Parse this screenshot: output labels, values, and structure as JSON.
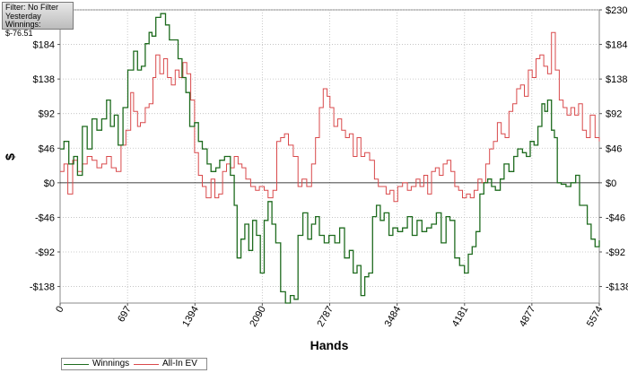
{
  "info_box": {
    "filter": "Filter: No Filter",
    "period": "Yesterday",
    "winnings": "Winnings: $-76.51"
  },
  "legend": {
    "items": [
      {
        "label": "Winnings",
        "color": "#1e6b1e"
      },
      {
        "label": "All-In EV",
        "color": "#d9494b"
      }
    ]
  },
  "chart_data": {
    "type": "line",
    "xlabel": "Hands",
    "ylabel": "$",
    "xlim": [
      0,
      5574
    ],
    "ylim": [
      -160,
      230
    ],
    "grid": true,
    "legend_position": "bottom-left",
    "x_ticks": [
      0,
      697,
      1394,
      2090,
      2787,
      3484,
      4181,
      4877,
      5574
    ],
    "x_tick_labels": [
      "0",
      "697",
      "1394",
      "2090",
      "2787",
      "3484",
      "4181",
      "4877",
      "5574"
    ],
    "y_ticks": [
      230,
      184,
      138,
      92,
      46,
      0,
      -46,
      -92,
      -138
    ],
    "y_tick_labels": [
      "$230",
      "$184",
      "$138",
      "$92",
      "$46",
      "$0",
      "-$46",
      "-$92",
      "-$138"
    ],
    "series": [
      {
        "name": "Winnings",
        "color": "#1e6b1e",
        "points": [
          [
            0,
            45
          ],
          [
            40,
            55
          ],
          [
            90,
            25
          ],
          [
            140,
            35
          ],
          [
            180,
            10
          ],
          [
            230,
            75
          ],
          [
            280,
            45
          ],
          [
            330,
            85
          ],
          [
            380,
            70
          ],
          [
            430,
            85
          ],
          [
            480,
            110
          ],
          [
            520,
            75
          ],
          [
            560,
            90
          ],
          [
            600,
            50
          ],
          [
            650,
            100
          ],
          [
            700,
            150
          ],
          [
            760,
            175
          ],
          [
            800,
            150
          ],
          [
            840,
            155
          ],
          [
            880,
            185
          ],
          [
            920,
            200
          ],
          [
            950,
            195
          ],
          [
            990,
            220
          ],
          [
            1040,
            225
          ],
          [
            1090,
            210
          ],
          [
            1130,
            190
          ],
          [
            1170,
            190
          ],
          [
            1220,
            165
          ],
          [
            1260,
            140
          ],
          [
            1300,
            120
          ],
          [
            1340,
            75
          ],
          [
            1390,
            80
          ],
          [
            1430,
            55
          ],
          [
            1470,
            45
          ],
          [
            1520,
            25
          ],
          [
            1560,
            15
          ],
          [
            1610,
            20
          ],
          [
            1650,
            30
          ],
          [
            1700,
            35
          ],
          [
            1760,
            10
          ],
          [
            1800,
            -30
          ],
          [
            1830,
            -100
          ],
          [
            1870,
            -75
          ],
          [
            1910,
            -55
          ],
          [
            1950,
            -90
          ],
          [
            1990,
            -50
          ],
          [
            2030,
            -70
          ],
          [
            2070,
            -120
          ],
          [
            2110,
            -50
          ],
          [
            2150,
            -25
          ],
          [
            2190,
            -55
          ],
          [
            2230,
            -80
          ],
          [
            2280,
            -145
          ],
          [
            2330,
            -160
          ],
          [
            2380,
            -150
          ],
          [
            2420,
            -155
          ],
          [
            2460,
            -70
          ],
          [
            2510,
            -40
          ],
          [
            2560,
            -75
          ],
          [
            2600,
            -55
          ],
          [
            2640,
            -45
          ],
          [
            2680,
            -70
          ],
          [
            2730,
            -80
          ],
          [
            2780,
            -70
          ],
          [
            2840,
            -80
          ],
          [
            2890,
            -60
          ],
          [
            2940,
            -100
          ],
          [
            2990,
            -90
          ],
          [
            3030,
            -120
          ],
          [
            3070,
            -110
          ],
          [
            3110,
            -150
          ],
          [
            3150,
            -125
          ],
          [
            3190,
            -120
          ],
          [
            3230,
            -45
          ],
          [
            3270,
            -30
          ],
          [
            3310,
            -50
          ],
          [
            3350,
            -40
          ],
          [
            3400,
            -70
          ],
          [
            3440,
            -60
          ],
          [
            3490,
            -65
          ],
          [
            3540,
            -60
          ],
          [
            3590,
            -45
          ],
          [
            3640,
            -70
          ],
          [
            3690,
            -50
          ],
          [
            3740,
            -65
          ],
          [
            3790,
            -60
          ],
          [
            3840,
            -55
          ],
          [
            3890,
            -40
          ],
          [
            3940,
            -80
          ],
          [
            3990,
            -45
          ],
          [
            4030,
            -50
          ],
          [
            4080,
            -100
          ],
          [
            4130,
            -110
          ],
          [
            4180,
            -120
          ],
          [
            4220,
            -95
          ],
          [
            4260,
            -85
          ],
          [
            4300,
            -65
          ],
          [
            4340,
            -15
          ],
          [
            4380,
            0
          ],
          [
            4420,
            5
          ],
          [
            4460,
            -5
          ],
          [
            4500,
            -10
          ],
          [
            4550,
            5
          ],
          [
            4590,
            25
          ],
          [
            4640,
            15
          ],
          [
            4690,
            35
          ],
          [
            4730,
            45
          ],
          [
            4780,
            40
          ],
          [
            4820,
            35
          ],
          [
            4860,
            55
          ],
          [
            4900,
            50
          ],
          [
            4940,
            75
          ],
          [
            4980,
            105
          ],
          [
            5010,
            95
          ],
          [
            5040,
            110
          ],
          [
            5080,
            70
          ],
          [
            5110,
            60
          ],
          [
            5140,
            0
          ],
          [
            5180,
            -2
          ],
          [
            5230,
            -5
          ],
          [
            5280,
            0
          ],
          [
            5330,
            10
          ],
          [
            5370,
            -30
          ],
          [
            5410,
            -30
          ],
          [
            5450,
            -55
          ],
          [
            5490,
            -75
          ],
          [
            5530,
            -85
          ],
          [
            5574,
            -76.51
          ]
        ]
      },
      {
        "name": "All-In EV",
        "color": "#d9494b",
        "points": [
          [
            0,
            15
          ],
          [
            40,
            25
          ],
          [
            80,
            -15
          ],
          [
            130,
            30
          ],
          [
            180,
            15
          ],
          [
            230,
            25
          ],
          [
            280,
            35
          ],
          [
            330,
            30
          ],
          [
            380,
            20
          ],
          [
            430,
            25
          ],
          [
            480,
            35
          ],
          [
            530,
            20
          ],
          [
            580,
            15
          ],
          [
            630,
            50
          ],
          [
            680,
            70
          ],
          [
            730,
            120
          ],
          [
            760,
            95
          ],
          [
            800,
            75
          ],
          [
            830,
            80
          ],
          [
            880,
            100
          ],
          [
            920,
            105
          ],
          [
            960,
            140
          ],
          [
            990,
            170
          ],
          [
            1030,
            145
          ],
          [
            1070,
            165
          ],
          [
            1110,
            140
          ],
          [
            1150,
            130
          ],
          [
            1190,
            150
          ],
          [
            1230,
            140
          ],
          [
            1270,
            160
          ],
          [
            1310,
            145
          ],
          [
            1350,
            110
          ],
          [
            1390,
            40
          ],
          [
            1430,
            10
          ],
          [
            1470,
            -5
          ],
          [
            1510,
            -20
          ],
          [
            1560,
            5
          ],
          [
            1600,
            -20
          ],
          [
            1640,
            -15
          ],
          [
            1680,
            15
          ],
          [
            1720,
            25
          ],
          [
            1760,
            20
          ],
          [
            1800,
            35
          ],
          [
            1840,
            25
          ],
          [
            1880,
            20
          ],
          [
            1920,
            5
          ],
          [
            1970,
            -5
          ],
          [
            2020,
            -10
          ],
          [
            2060,
            -5
          ],
          [
            2110,
            -10
          ],
          [
            2150,
            -20
          ],
          [
            2200,
            -10
          ],
          [
            2240,
            55
          ],
          [
            2280,
            60
          ],
          [
            2320,
            65
          ],
          [
            2360,
            50
          ],
          [
            2410,
            35
          ],
          [
            2460,
            -5
          ],
          [
            2500,
            5
          ],
          [
            2550,
            -5
          ],
          [
            2600,
            25
          ],
          [
            2640,
            60
          ],
          [
            2680,
            100
          ],
          [
            2720,
            125
          ],
          [
            2760,
            115
          ],
          [
            2790,
            100
          ],
          [
            2830,
            75
          ],
          [
            2870,
            85
          ],
          [
            2910,
            70
          ],
          [
            2950,
            60
          ],
          [
            2990,
            65
          ],
          [
            3030,
            35
          ],
          [
            3070,
            60
          ],
          [
            3110,
            35
          ],
          [
            3150,
            40
          ],
          [
            3200,
            30
          ],
          [
            3250,
            5
          ],
          [
            3290,
            -5
          ],
          [
            3330,
            -5
          ],
          [
            3370,
            -15
          ],
          [
            3410,
            -10
          ],
          [
            3450,
            -25
          ],
          [
            3490,
            -5
          ],
          [
            3540,
            0
          ],
          [
            3590,
            -10
          ],
          [
            3630,
            -5
          ],
          [
            3680,
            5
          ],
          [
            3720,
            -5
          ],
          [
            3760,
            10
          ],
          [
            3800,
            -15
          ],
          [
            3840,
            15
          ],
          [
            3880,
            20
          ],
          [
            3920,
            10
          ],
          [
            3960,
            25
          ],
          [
            4000,
            30
          ],
          [
            4040,
            15
          ],
          [
            4080,
            -5
          ],
          [
            4120,
            -10
          ],
          [
            4160,
            -20
          ],
          [
            4200,
            -15
          ],
          [
            4240,
            -20
          ],
          [
            4280,
            -10
          ],
          [
            4320,
            5
          ],
          [
            4360,
            0
          ],
          [
            4400,
            25
          ],
          [
            4440,
            45
          ],
          [
            4480,
            55
          ],
          [
            4520,
            80
          ],
          [
            4560,
            65
          ],
          [
            4600,
            60
          ],
          [
            4640,
            95
          ],
          [
            4680,
            105
          ],
          [
            4720,
            125
          ],
          [
            4760,
            130
          ],
          [
            4800,
            115
          ],
          [
            4840,
            150
          ],
          [
            4880,
            140
          ],
          [
            4920,
            165
          ],
          [
            4960,
            170
          ],
          [
            5000,
            155
          ],
          [
            5040,
            145
          ],
          [
            5080,
            200
          ],
          [
            5120,
            150
          ],
          [
            5160,
            110
          ],
          [
            5200,
            100
          ],
          [
            5240,
            90
          ],
          [
            5280,
            100
          ],
          [
            5320,
            90
          ],
          [
            5360,
            105
          ],
          [
            5400,
            70
          ],
          [
            5440,
            60
          ],
          [
            5480,
            90
          ],
          [
            5530,
            60
          ],
          [
            5574,
            55
          ]
        ]
      }
    ]
  }
}
